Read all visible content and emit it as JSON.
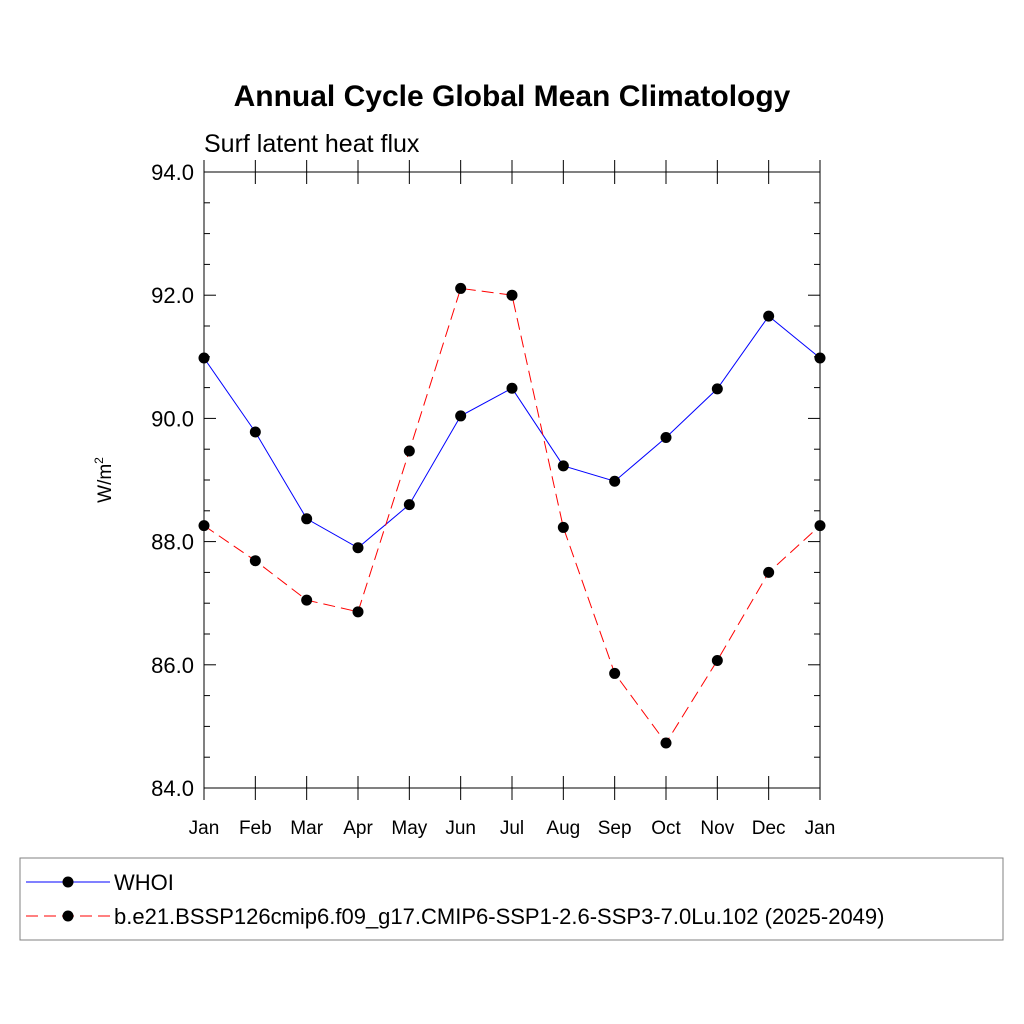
{
  "chart_data": {
    "type": "line",
    "title": "Annual Cycle Global Mean Climatology",
    "subtitle": "Surf latent heat flux",
    "ylabel": "W/m",
    "ylabel_superscript": "2",
    "xlabel": "",
    "ylim": [
      84.0,
      94.0
    ],
    "yticks": [
      "84.0",
      "86.0",
      "88.0",
      "90.0",
      "92.0",
      "94.0"
    ],
    "categories": [
      "Jan",
      "Feb",
      "Mar",
      "Apr",
      "May",
      "Jun",
      "Jul",
      "Aug",
      "Sep",
      "Oct",
      "Nov",
      "Dec",
      "Jan"
    ],
    "grid": false,
    "legend_position": "bottom",
    "series": [
      {
        "name": "WHOI",
        "color": "#0000ff",
        "dash": "solid",
        "marker": "circle",
        "values": [
          90.98,
          89.78,
          88.37,
          87.9,
          88.6,
          90.04,
          90.49,
          89.23,
          88.98,
          89.69,
          90.48,
          91.66,
          90.98
        ]
      },
      {
        "name": "b.e21.BSSP126cmip6.f09_g17.CMIP6-SSP1-2.6-SSP3-7.0Lu.102 (2025-2049)",
        "color": "#ff0000",
        "dash": "dashed",
        "marker": "circle",
        "values": [
          88.26,
          87.69,
          87.05,
          86.86,
          89.47,
          92.11,
          92.0,
          88.23,
          85.86,
          84.73,
          86.07,
          87.5,
          88.26
        ]
      }
    ]
  }
}
